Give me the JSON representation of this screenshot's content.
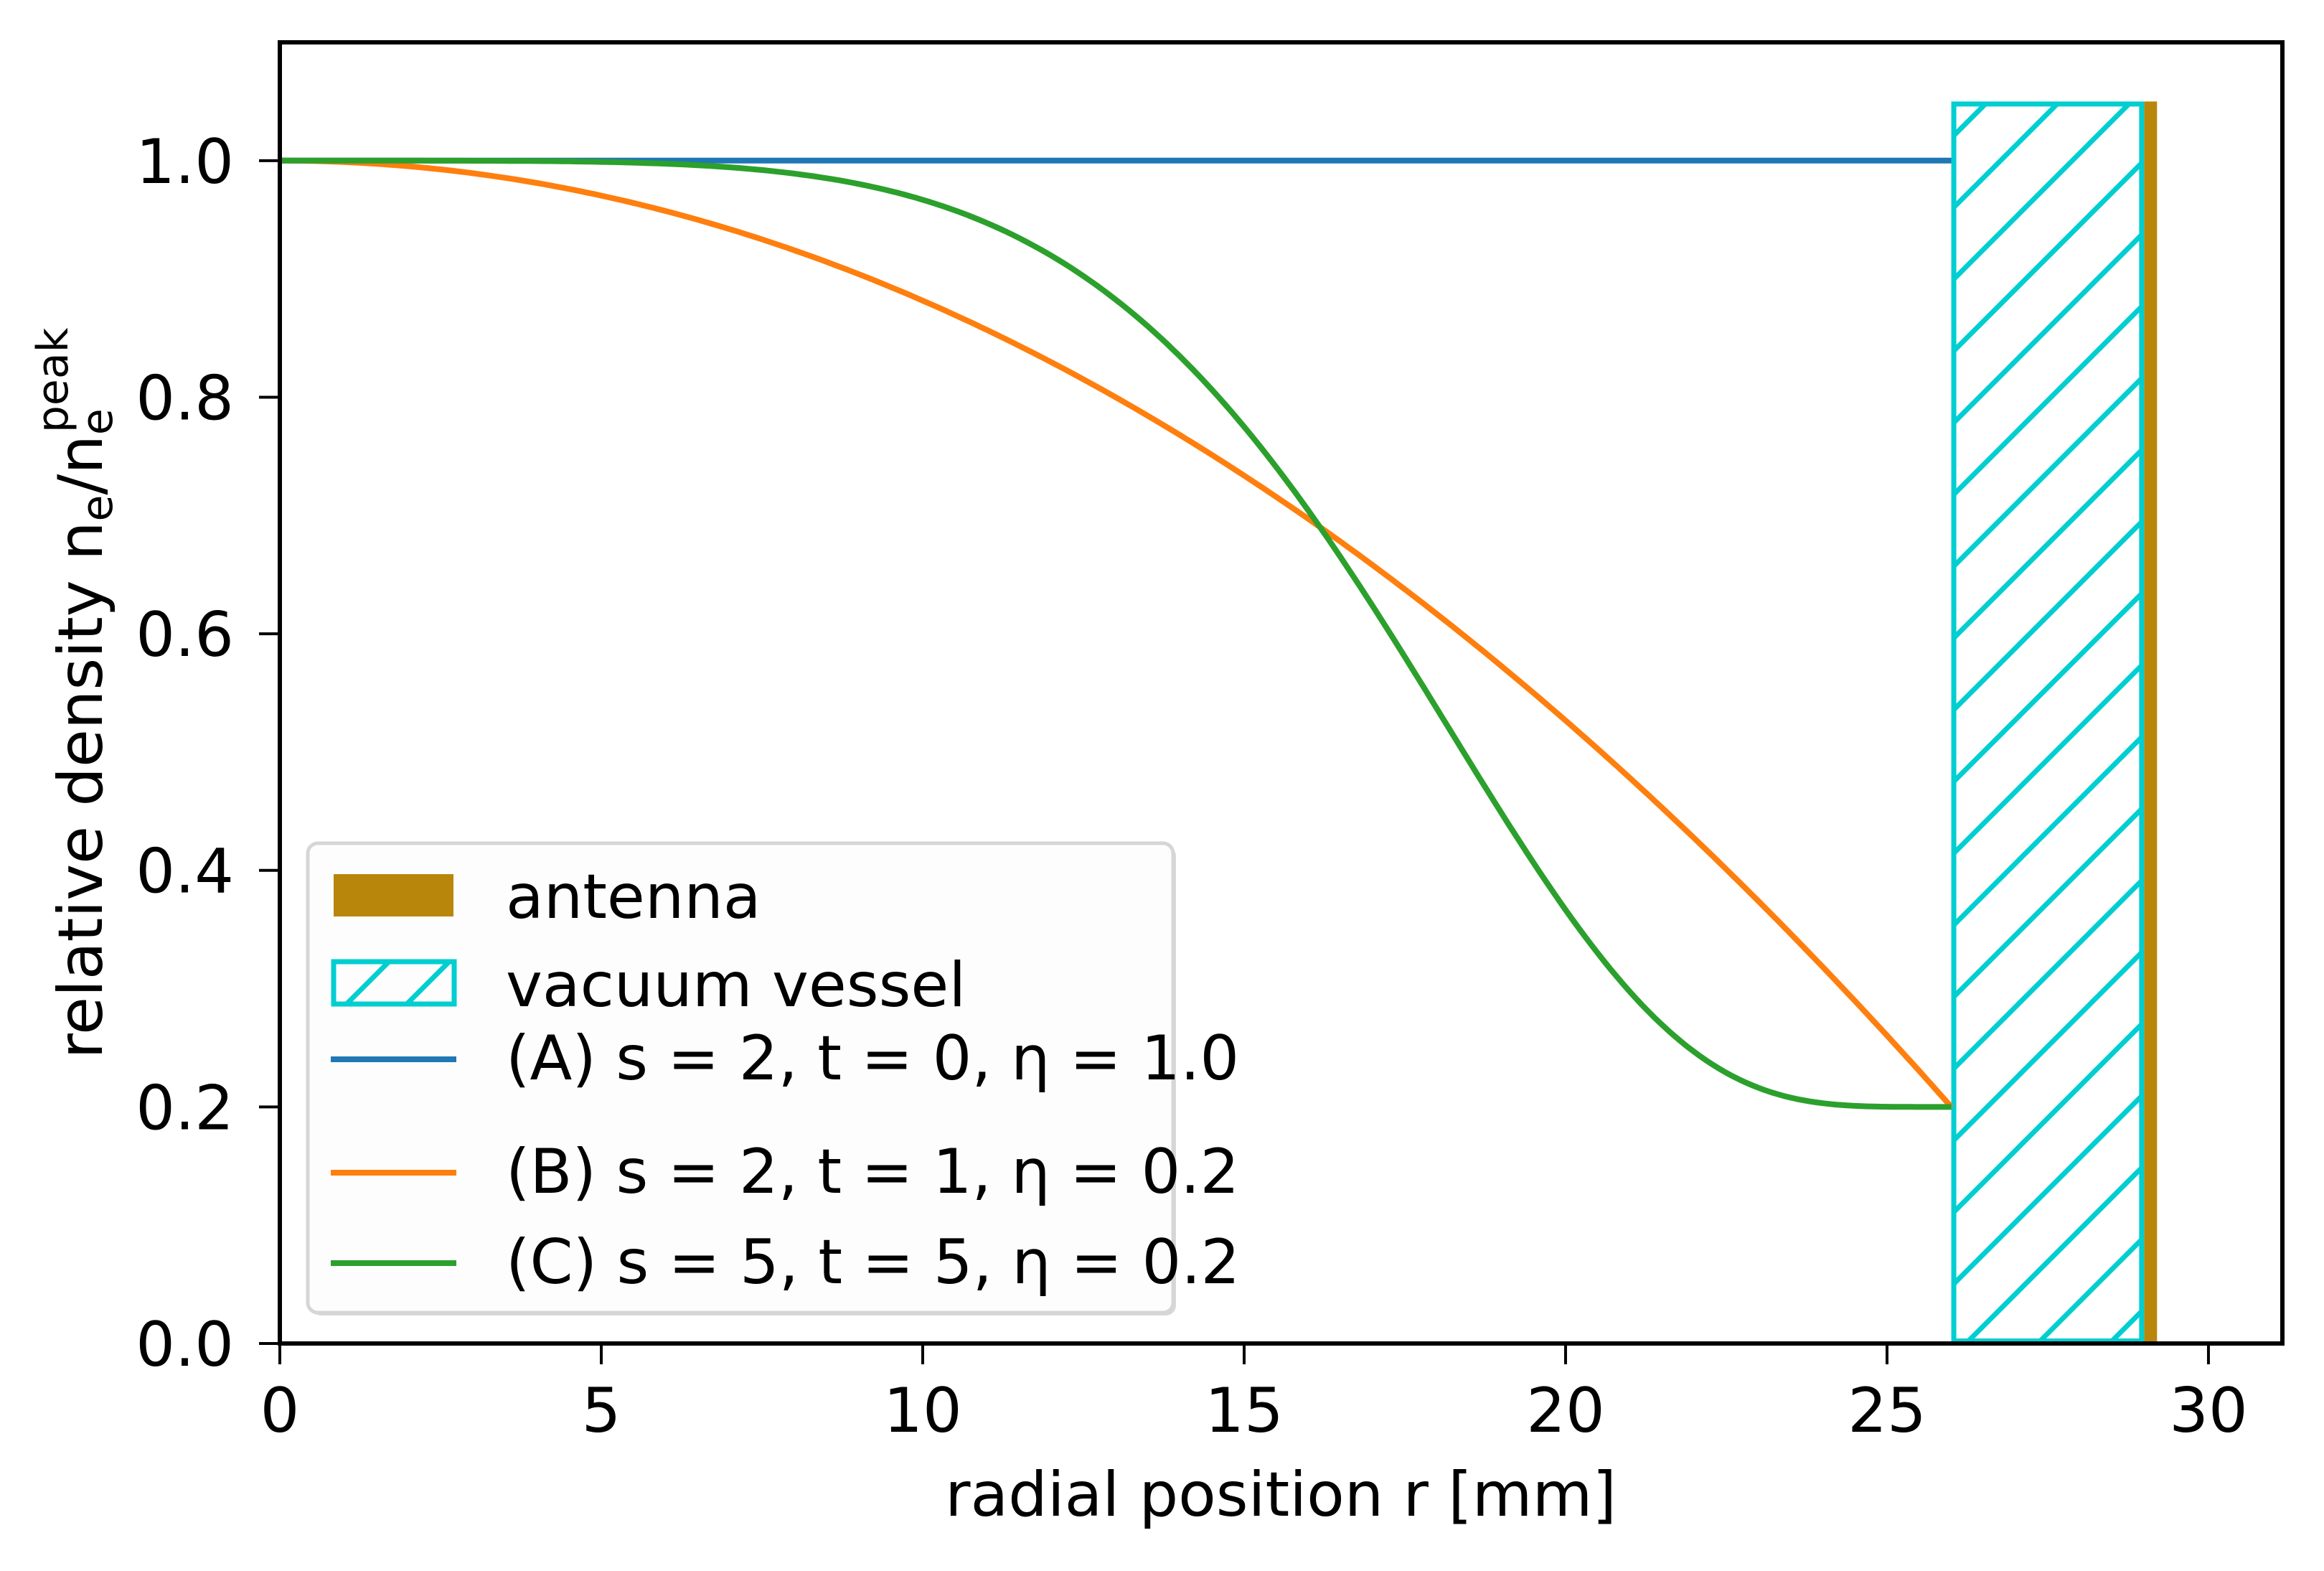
{
  "figure": {
    "xlabel": "radial position r [mm]",
    "ylabel_main": "relative density n",
    "ylabel_sub1": "e",
    "ylabel_mid": "/n",
    "ylabel_sub2": "e",
    "ylabel_sup": "peak"
  },
  "legend": {
    "items": [
      {
        "label": "antenna",
        "kind": "patch-solid",
        "color": "#b8860b"
      },
      {
        "label": "vacuum vessel",
        "kind": "patch-hatch",
        "color": "#00ced1"
      },
      {
        "label": "(A) s = 2, t = 0, η = 1.0",
        "kind": "line",
        "color": "#1f77b4"
      },
      {
        "label": "(B) s = 2, t = 1, η = 0.2",
        "kind": "line",
        "color": "#ff7f0e"
      },
      {
        "label": "(C) s = 5, t = 5, η = 0.2",
        "kind": "line",
        "color": "#2ca02c"
      }
    ]
  },
  "chart_data": {
    "type": "line",
    "title": "",
    "xlabel": "radial position r [mm]",
    "ylabel": "relative density n_e/n_e^peak",
    "xlim": [
      0,
      31.15
    ],
    "ylim": [
      0,
      1.1
    ],
    "xticks": [
      0,
      5,
      10,
      15,
      20,
      25,
      30
    ],
    "xtick_labels": [
      "0",
      "5",
      "10",
      "15",
      "20",
      "25",
      "30"
    ],
    "yticks": [
      0.0,
      0.2,
      0.4,
      0.6,
      0.8,
      1.0
    ],
    "ytick_labels": [
      "0.0",
      "0.2",
      "0.4",
      "0.6",
      "0.8",
      "1.0"
    ],
    "grid": false,
    "legend_position": "lower left",
    "series": [
      {
        "name": "(A) s = 2, t = 0, η = 1.0",
        "color": "#1f77b4",
        "x": [
          0,
          26
        ],
        "y": [
          1.0,
          1.0
        ]
      },
      {
        "name": "(B) s = 2, t = 1, η = 0.2",
        "color": "#ff7f0e",
        "x": [
          0,
          2,
          4,
          6,
          8,
          10,
          12,
          14,
          16,
          18,
          20,
          22,
          24,
          26
        ],
        "y": [
          1.0,
          0.995,
          0.981,
          0.957,
          0.924,
          0.882,
          0.83,
          0.768,
          0.697,
          0.617,
          0.527,
          0.427,
          0.318,
          0.2
        ]
      },
      {
        "name": "(C) s = 5, t = 5, η = 0.2",
        "color": "#2ca02c",
        "x": [
          0,
          2,
          4,
          6,
          8,
          10,
          12,
          14,
          15,
          16,
          17,
          18,
          19,
          20,
          21,
          22,
          23,
          24,
          25,
          26
        ],
        "y": [
          1.0,
          1.0,
          1.0,
          0.997,
          0.989,
          0.967,
          0.92,
          0.835,
          0.775,
          0.704,
          0.623,
          0.537,
          0.449,
          0.367,
          0.297,
          0.247,
          0.216,
          0.203,
          0.2,
          0.2
        ]
      }
    ],
    "regions": [
      {
        "name": "vacuum vessel",
        "x0": 26.0,
        "x1": 29.0,
        "y0": 0,
        "y1": 1.05,
        "fill": "none",
        "edge": "#00ced1",
        "hatch": "/"
      },
      {
        "name": "antenna",
        "x0": 29.0,
        "x1": 29.2,
        "y0": 0,
        "y1": 1.05,
        "fill": "#b8860b"
      }
    ]
  }
}
